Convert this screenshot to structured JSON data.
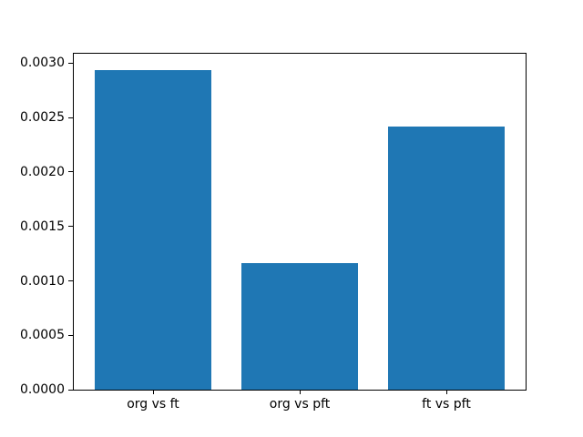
{
  "figure": {
    "background_color": "#ffffff",
    "spine_color": "#000000",
    "text_color": "#000000"
  },
  "chart_data": {
    "type": "bar",
    "title": "",
    "xlabel": "",
    "ylabel": "",
    "categories": [
      "org vs ft",
      "org vs pft",
      "ft vs pft"
    ],
    "values": [
      0.00294,
      0.00116,
      0.00242
    ],
    "bar_color": "#1f77b4",
    "bar_width_fraction": 0.8,
    "ylim": [
      0,
      0.003087
    ],
    "yticks": [
      0.0,
      0.0005,
      0.001,
      0.0015,
      0.002,
      0.0025,
      0.003
    ],
    "ytick_labels": [
      "0.0000",
      "0.0005",
      "0.0010",
      "0.0015",
      "0.0020",
      "0.0025",
      "0.0030"
    ],
    "grid": false,
    "legend": null
  }
}
